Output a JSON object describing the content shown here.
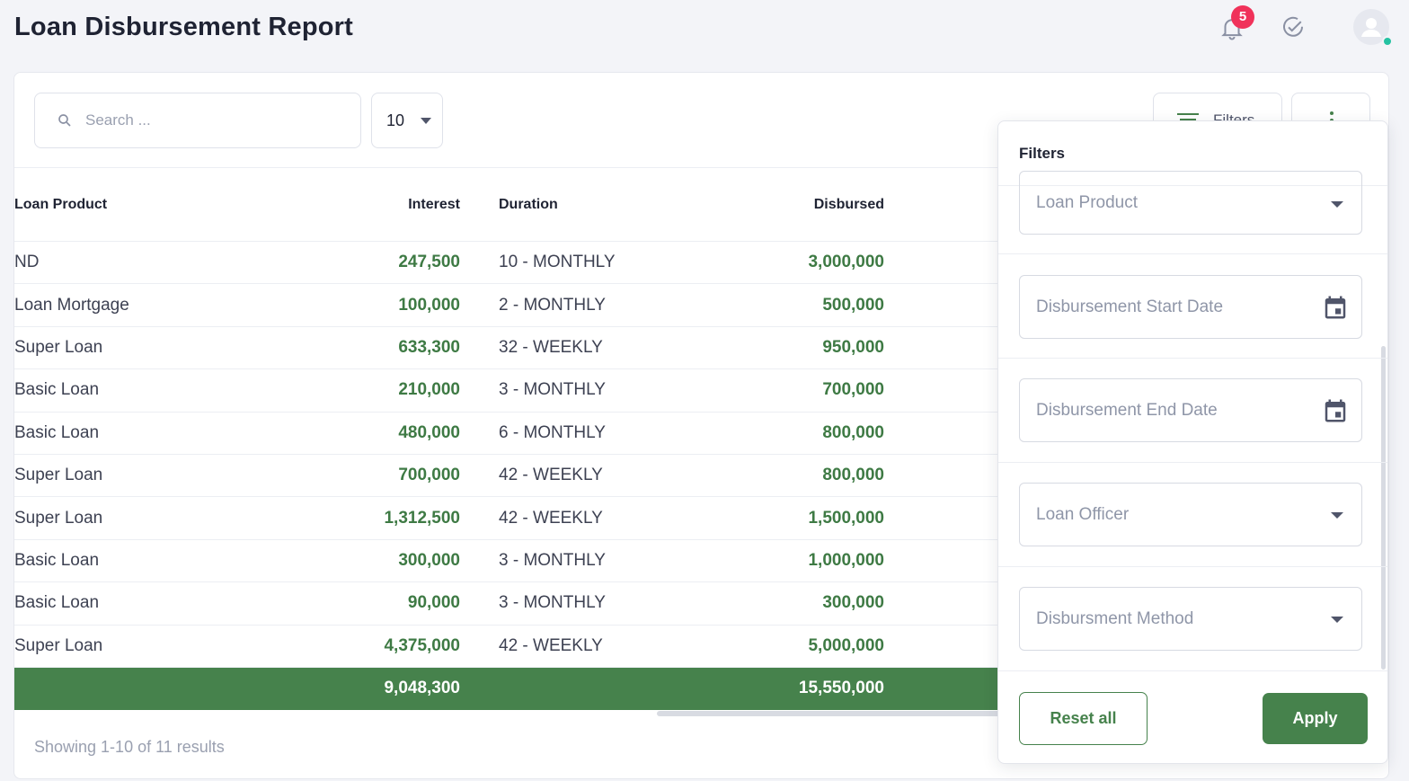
{
  "header": {
    "title": "Loan Disbursement Report",
    "notification_count": "5"
  },
  "toolbar": {
    "search_placeholder": "Search ...",
    "per_page": "10",
    "filters_label": "Filters"
  },
  "table": {
    "columns": [
      "Loan Product",
      "Interest",
      "Duration",
      "Disbursed"
    ],
    "rows": [
      {
        "product": "ND",
        "interest": "247,500",
        "duration": "10 - MONTHLY",
        "disbursed": "3,000,000"
      },
      {
        "product": "Loan Mortgage",
        "interest": "100,000",
        "duration": "2 - MONTHLY",
        "disbursed": "500,000"
      },
      {
        "product": "Super Loan",
        "interest": "633,300",
        "duration": "32 - WEEKLY",
        "disbursed": "950,000"
      },
      {
        "product": "Basic Loan",
        "interest": "210,000",
        "duration": "3 - MONTHLY",
        "disbursed": "700,000"
      },
      {
        "product": "Basic Loan",
        "interest": "480,000",
        "duration": "6 - MONTHLY",
        "disbursed": "800,000"
      },
      {
        "product": "Super Loan",
        "interest": "700,000",
        "duration": "42 - WEEKLY",
        "disbursed": "800,000"
      },
      {
        "product": "Super Loan",
        "interest": "1,312,500",
        "duration": "42 - WEEKLY",
        "disbursed": "1,500,000"
      },
      {
        "product": "Basic Loan",
        "interest": "300,000",
        "duration": "3 - MONTHLY",
        "disbursed": "1,000,000"
      },
      {
        "product": "Basic Loan",
        "interest": "90,000",
        "duration": "3 - MONTHLY",
        "disbursed": "300,000"
      },
      {
        "product": "Super Loan",
        "interest": "4,375,000",
        "duration": "42 - WEEKLY",
        "disbursed": "5,000,000"
      }
    ],
    "totals": {
      "interest": "9,048,300",
      "disbursed": "15,550,000"
    },
    "showing": "Showing 1-10 of 11 results"
  },
  "filter_panel": {
    "title": "Filters",
    "fields": {
      "loan_product": "Loan Product",
      "start_date": "Disbursement Start Date",
      "end_date": "Disbursement End Date",
      "loan_officer": "Loan Officer",
      "method": "Disbursment Method"
    },
    "reset_label": "Reset all",
    "apply_label": "Apply"
  },
  "colors": {
    "accent": "#46824c",
    "badge": "#f0325a",
    "online": "#25c2a2"
  }
}
